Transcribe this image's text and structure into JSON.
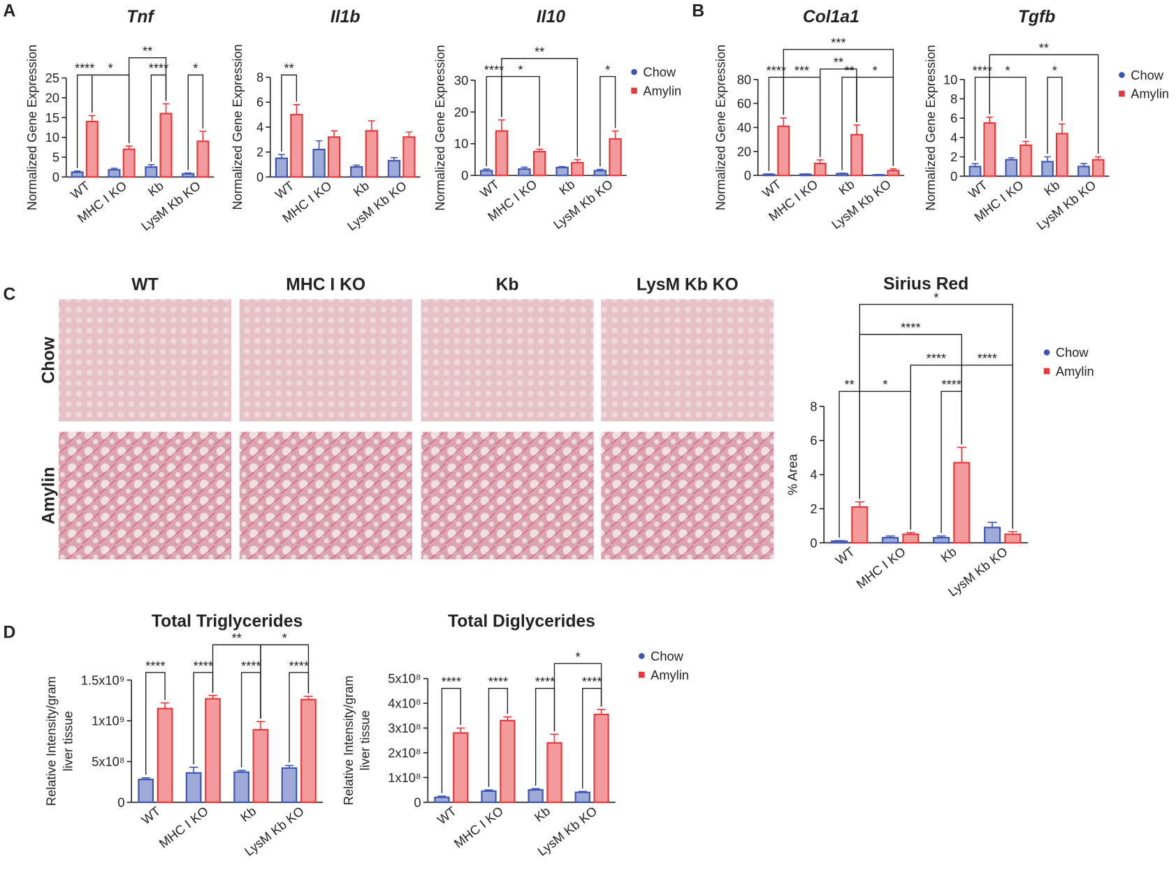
{
  "panels": [
    "A",
    "B",
    "C",
    "D"
  ],
  "micrographs": {
    "columns": [
      "WT",
      "MHC I KO",
      "Kb",
      "LysM Kb KO"
    ],
    "rows": [
      "Chow",
      "Amylin"
    ]
  },
  "chart_data": [
    {
      "type": "bar",
      "title": "Tnf",
      "ylabel": "Normalized Gene Expression",
      "categories": [
        "WT",
        "MHC I KO",
        "Kb",
        "LysM Kb KO"
      ],
      "series": [
        {
          "name": "Chow",
          "color": "#3d55b0",
          "values": [
            1.2,
            1.8,
            2.5,
            0.8
          ],
          "errors": [
            0.3,
            0.4,
            0.6,
            0.2
          ]
        },
        {
          "name": "Amylin",
          "color": "#e8373a",
          "values": [
            14,
            7,
            16,
            9
          ],
          "errors": [
            1.5,
            0.8,
            2.5,
            2.5
          ]
        }
      ],
      "ylim": [
        0,
        25
      ],
      "yticks": [
        0,
        5,
        10,
        15,
        20,
        25
      ],
      "annotations": [
        "****",
        "*",
        "**",
        "****",
        "*"
      ]
    },
    {
      "type": "bar",
      "title": "Il1b",
      "ylabel": "Normalized Gene Expression",
      "categories": [
        "WT",
        "MHC I KO",
        "Kb",
        "LysM Kb KO"
      ],
      "series": [
        {
          "name": "Chow",
          "color": "#3d55b0",
          "values": [
            1.5,
            2.2,
            0.8,
            1.3
          ],
          "errors": [
            0.3,
            0.7,
            0.15,
            0.25
          ]
        },
        {
          "name": "Amylin",
          "color": "#e8373a",
          "values": [
            5.0,
            3.2,
            3.7,
            3.2
          ],
          "errors": [
            0.8,
            0.5,
            0.8,
            0.4
          ]
        }
      ],
      "ylim": [
        0,
        8
      ],
      "yticks": [
        0,
        2,
        4,
        6,
        8
      ],
      "annotations": [
        "**"
      ]
    },
    {
      "type": "bar",
      "title": "Il10",
      "ylabel": "Normalized Gene Expression",
      "categories": [
        "WT",
        "MHC I KO",
        "Kb",
        "LysM Kb KO"
      ],
      "series": [
        {
          "name": "Chow",
          "color": "#3d55b0",
          "values": [
            1.5,
            2,
            2.5,
            1.5
          ],
          "errors": [
            0.5,
            0.6,
            0.3,
            0.4
          ]
        },
        {
          "name": "Amylin",
          "color": "#e8373a",
          "values": [
            14,
            7.5,
            4,
            11.5
          ],
          "errors": [
            3.5,
            0.8,
            1,
            2.5
          ]
        }
      ],
      "ylim": [
        0,
        30
      ],
      "yticks": [
        0,
        10,
        20,
        30
      ],
      "annotations": [
        "****",
        "*",
        "**",
        "*"
      ],
      "legend": "right"
    },
    {
      "type": "bar",
      "title": "Col1a1",
      "ylabel": "Normalized Gene Expression",
      "categories": [
        "WT",
        "MHC I KO",
        "Kb",
        "LysM Kb KO"
      ],
      "series": [
        {
          "name": "Chow",
          "color": "#3d55b0",
          "values": [
            1,
            1,
            1.5,
            0.5
          ],
          "errors": [
            0.3,
            0.3,
            0.4,
            0.2
          ]
        },
        {
          "name": "Amylin",
          "color": "#e8373a",
          "values": [
            41,
            10,
            34,
            4
          ],
          "errors": [
            7,
            3,
            8,
            1.5
          ]
        }
      ],
      "ylim": [
        0,
        80
      ],
      "yticks": [
        0,
        20,
        40,
        60,
        80
      ],
      "annotations": [
        "****",
        "***",
        "**",
        "**",
        "*",
        "***"
      ]
    },
    {
      "type": "bar",
      "title": "Tgfb",
      "ylabel": "Normalized Gene Expression",
      "categories": [
        "WT",
        "MHC I KO",
        "Kb",
        "LysM Kb KO"
      ],
      "series": [
        {
          "name": "Chow",
          "color": "#3d55b0",
          "values": [
            1.0,
            1.7,
            1.5,
            1.0
          ],
          "errors": [
            0.3,
            0.2,
            0.5,
            0.3
          ]
        },
        {
          "name": "Amylin",
          "color": "#e8373a",
          "values": [
            5.5,
            3.2,
            4.4,
            1.7
          ],
          "errors": [
            0.6,
            0.4,
            1.0,
            0.3
          ]
        }
      ],
      "ylim": [
        0,
        10
      ],
      "yticks": [
        0,
        2,
        4,
        6,
        8,
        10
      ],
      "annotations": [
        "****",
        "*",
        "*",
        "**"
      ],
      "legend": "right"
    },
    {
      "type": "bar",
      "title": "Sirius Red",
      "ylabel": "% Area",
      "categories": [
        "WT",
        "MHC I KO",
        "Kb",
        "LysM Kb KO"
      ],
      "series": [
        {
          "name": "Chow",
          "color": "#3d55b0",
          "values": [
            0.1,
            0.3,
            0.3,
            0.9
          ],
          "errors": [
            0.03,
            0.1,
            0.1,
            0.3
          ]
        },
        {
          "name": "Amylin",
          "color": "#e8373a",
          "values": [
            2.1,
            0.5,
            4.7,
            0.5
          ],
          "errors": [
            0.3,
            0.1,
            0.9,
            0.15
          ]
        }
      ],
      "ylim": [
        0,
        8
      ],
      "yticks": [
        0,
        2,
        4,
        6,
        8
      ],
      "annotations": [
        "**",
        "*",
        "****",
        "****",
        "****",
        "****",
        "*"
      ],
      "legend": "right"
    },
    {
      "type": "bar",
      "title": "Total Triglycerides",
      "ylabel": [
        "Relative Intensity/gram",
        "liver tissue"
      ],
      "categories": [
        "WT",
        "MHC I KO",
        "Kb",
        "LysM Kb KO"
      ],
      "series": [
        {
          "name": "Chow",
          "color": "#3d55b0",
          "values": [
            280000000,
            360000000,
            370000000,
            420000000
          ],
          "errors": [
            20000000,
            70000000,
            20000000,
            30000000
          ]
        },
        {
          "name": "Amylin",
          "color": "#e8373a",
          "values": [
            1150000000,
            1270000000,
            890000000,
            1260000000
          ],
          "errors": [
            70000000,
            40000000,
            100000000,
            40000000
          ]
        }
      ],
      "ylim": [
        0,
        1500000000
      ],
      "yticks": [
        0,
        {
          "value": 500000000,
          "label": "5x10⁸"
        },
        {
          "value": 1000000000,
          "label": "1x10⁹"
        },
        {
          "value": 1500000000,
          "label": "1.5x10⁹"
        }
      ],
      "annotations": [
        "****",
        "****",
        "****",
        "****",
        "**",
        "*"
      ]
    },
    {
      "type": "bar",
      "title": "Total Diglycerides",
      "ylabel": [
        "Relative Intensity/gram",
        "liver tissue"
      ],
      "categories": [
        "WT",
        "MHC I KO",
        "Kb",
        "LysM Kb KO"
      ],
      "series": [
        {
          "name": "Chow",
          "color": "#3d55b0",
          "values": [
            20000000,
            45000000,
            50000000,
            40000000
          ],
          "errors": [
            5000000,
            5000000,
            5000000,
            4000000
          ]
        },
        {
          "name": "Amylin",
          "color": "#e8373a",
          "values": [
            280000000,
            330000000,
            240000000,
            355000000
          ],
          "errors": [
            20000000,
            15000000,
            35000000,
            20000000
          ]
        }
      ],
      "ylim": [
        0,
        500000000
      ],
      "yticks": [
        0,
        {
          "value": 100000000,
          "label": "1x10⁸"
        },
        {
          "value": 200000000,
          "label": "2x10⁸"
        },
        {
          "value": 300000000,
          "label": "3x10⁸"
        },
        {
          "value": 400000000,
          "label": "4x10⁸"
        },
        {
          "value": 500000000,
          "label": "5x10⁸"
        }
      ],
      "annotations": [
        "****",
        "****",
        "****",
        "****",
        "*"
      ],
      "legend": "right"
    }
  ]
}
